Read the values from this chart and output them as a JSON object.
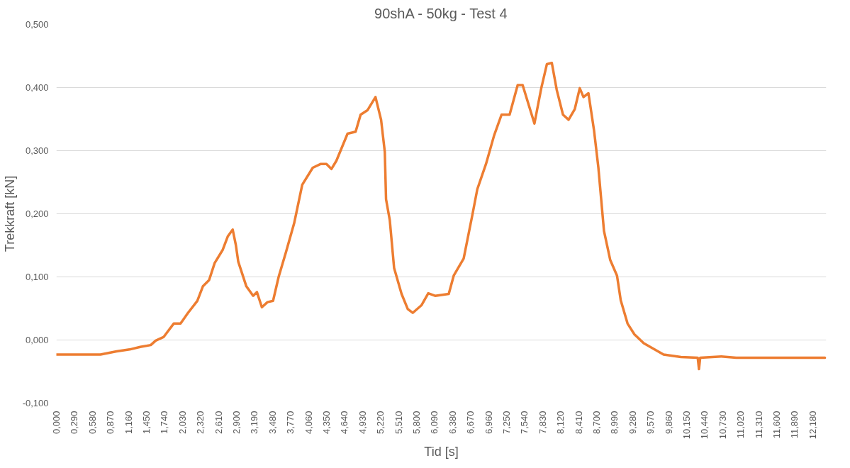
{
  "chart_data": {
    "type": "line",
    "title": "90shA - 50kg - Test 4",
    "xlabel": "Tid [s]",
    "ylabel": "Trekkraft [kN]",
    "grid": "y",
    "line_style": "solid",
    "marker": "none",
    "xlim": [
      0,
      12.4
    ],
    "ylim": [
      -0.1,
      0.5
    ],
    "yticks": [
      {
        "value": -0.1,
        "label": "-0,100"
      },
      {
        "value": 0,
        "label": "0,000"
      },
      {
        "value": 0.1,
        "label": "0,100"
      },
      {
        "value": 0.2,
        "label": "0,200"
      },
      {
        "value": 0.3,
        "label": "0,300"
      },
      {
        "value": 0.4,
        "label": "0,400"
      },
      {
        "value": 0.5,
        "label": "0,500"
      }
    ],
    "xticks": [
      {
        "value": 0,
        "label": "0,000"
      },
      {
        "value": 0.29,
        "label": "0,290"
      },
      {
        "value": 0.58,
        "label": "0,580"
      },
      {
        "value": 0.87,
        "label": "0,870"
      },
      {
        "value": 1.16,
        "label": "1,160"
      },
      {
        "value": 1.45,
        "label": "1,450"
      },
      {
        "value": 1.74,
        "label": "1,740"
      },
      {
        "value": 2.03,
        "label": "2,030"
      },
      {
        "value": 2.32,
        "label": "2,320"
      },
      {
        "value": 2.61,
        "label": "2,610"
      },
      {
        "value": 2.9,
        "label": "2,900"
      },
      {
        "value": 3.19,
        "label": "3,190"
      },
      {
        "value": 3.48,
        "label": "3,480"
      },
      {
        "value": 3.77,
        "label": "3,770"
      },
      {
        "value": 4.06,
        "label": "4,060"
      },
      {
        "value": 4.35,
        "label": "4,350"
      },
      {
        "value": 4.64,
        "label": "4,640"
      },
      {
        "value": 4.93,
        "label": "4,930"
      },
      {
        "value": 5.22,
        "label": "5,220"
      },
      {
        "value": 5.51,
        "label": "5,510"
      },
      {
        "value": 5.8,
        "label": "5,800"
      },
      {
        "value": 6.09,
        "label": "6,090"
      },
      {
        "value": 6.38,
        "label": "6,380"
      },
      {
        "value": 6.67,
        "label": "6,670"
      },
      {
        "value": 6.96,
        "label": "6,960"
      },
      {
        "value": 7.25,
        "label": "7,250"
      },
      {
        "value": 7.54,
        "label": "7,540"
      },
      {
        "value": 7.83,
        "label": "7,830"
      },
      {
        "value": 8.12,
        "label": "8,120"
      },
      {
        "value": 8.41,
        "label": "8,410"
      },
      {
        "value": 8.7,
        "label": "8,700"
      },
      {
        "value": 8.99,
        "label": "8,990"
      },
      {
        "value": 9.28,
        "label": "9,280"
      },
      {
        "value": 9.57,
        "label": "9,570"
      },
      {
        "value": 9.86,
        "label": "9,860"
      },
      {
        "value": 10.15,
        "label": "10,150"
      },
      {
        "value": 10.44,
        "label": "10,440"
      },
      {
        "value": 10.73,
        "label": "10,730"
      },
      {
        "value": 11.02,
        "label": "11,020"
      },
      {
        "value": 11.31,
        "label": "11,310"
      },
      {
        "value": 11.6,
        "label": "11,600"
      },
      {
        "value": 11.89,
        "label": "11,890"
      },
      {
        "value": 12.18,
        "label": "12,180"
      }
    ],
    "series": [
      {
        "color": "#ed7d31",
        "x": [
          0,
          0.71,
          0.97,
          1.18,
          1.35,
          1.52,
          1.6,
          1.73,
          1.89,
          2.0,
          2.12,
          2.27,
          2.36,
          2.46,
          2.55,
          2.68,
          2.76,
          2.84,
          2.89,
          2.93,
          3.06,
          3.17,
          3.23,
          3.31,
          3.4,
          3.49,
          3.58,
          3.7,
          3.83,
          3.96,
          4.13,
          4.26,
          4.35,
          4.43,
          4.51,
          4.69,
          4.82,
          4.9,
          5.01,
          5.14,
          5.23,
          5.29,
          5.31,
          5.37,
          5.44,
          5.56,
          5.66,
          5.74,
          5.88,
          5.99,
          6.1,
          6.32,
          6.4,
          6.56,
          6.7,
          6.78,
          6.92,
          7.05,
          7.17,
          7.3,
          7.43,
          7.51,
          7.7,
          7.81,
          7.9,
          7.98,
          8.06,
          8.16,
          8.25,
          8.35,
          8.43,
          8.49,
          8.57,
          8.66,
          8.73,
          8.82,
          8.92,
          9.03,
          9.09,
          9.2,
          9.31,
          9.46,
          9.78,
          10.06,
          10.33,
          10.35,
          10.37,
          10.71,
          10.95,
          12.38
        ],
        "values": [
          -0.023,
          -0.023,
          -0.018,
          -0.015,
          -0.011,
          -0.008,
          -0.001,
          0.005,
          0.026,
          0.026,
          0.043,
          0.062,
          0.085,
          0.095,
          0.122,
          0.143,
          0.164,
          0.175,
          0.151,
          0.124,
          0.085,
          0.07,
          0.076,
          0.052,
          0.06,
          0.062,
          0.1,
          0.14,
          0.185,
          0.246,
          0.273,
          0.279,
          0.279,
          0.271,
          0.284,
          0.327,
          0.33,
          0.357,
          0.364,
          0.385,
          0.349,
          0.298,
          0.223,
          0.19,
          0.114,
          0.073,
          0.049,
          0.043,
          0.055,
          0.074,
          0.07,
          0.073,
          0.102,
          0.129,
          0.198,
          0.239,
          0.279,
          0.324,
          0.357,
          0.357,
          0.404,
          0.404,
          0.343,
          0.399,
          0.437,
          0.439,
          0.396,
          0.357,
          0.349,
          0.366,
          0.399,
          0.385,
          0.391,
          0.332,
          0.273,
          0.173,
          0.127,
          0.102,
          0.063,
          0.026,
          0.009,
          -0.005,
          -0.023,
          -0.027,
          -0.028,
          -0.046,
          -0.028,
          -0.026,
          -0.028,
          -0.028
        ]
      }
    ]
  }
}
